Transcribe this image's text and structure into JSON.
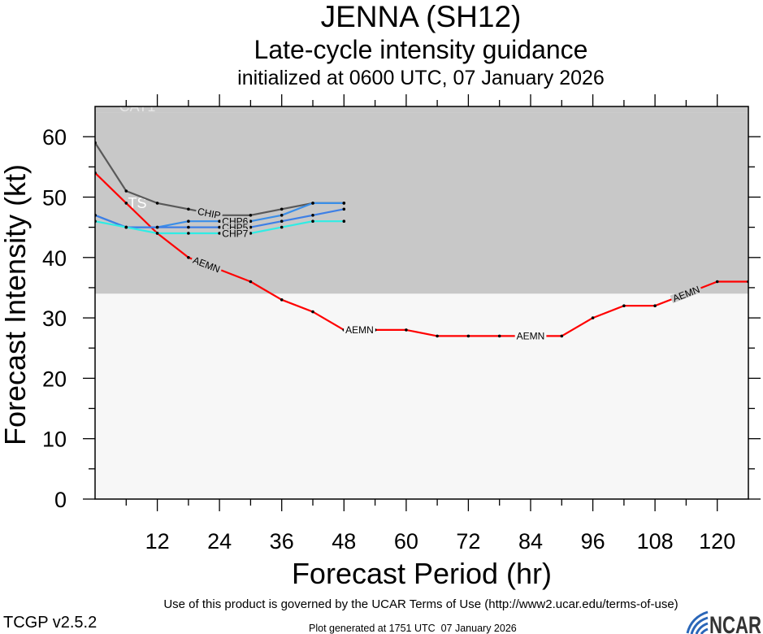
{
  "chart_data": {
    "type": "line",
    "title": "JENNA (SH12)",
    "subtitle": "Late-cycle intensity guidance",
    "initialized": "initialized at 0600 UTC, 07 January 2026",
    "xlabel": "Forecast Period (hr)",
    "ylabel": "Forecast Intensity (kt)",
    "xlim": [
      0,
      126
    ],
    "ylim": [
      0,
      65
    ],
    "xticks": [
      12,
      24,
      36,
      48,
      60,
      72,
      84,
      96,
      108,
      120
    ],
    "yticks": [
      0,
      10,
      20,
      30,
      40,
      50,
      60
    ],
    "grid": false,
    "background_color": "#f7f7f7",
    "bands": [
      {
        "label": "TS",
        "min": 34,
        "max": 64,
        "color": "#c8c8c8",
        "label_color": "#ffffff"
      },
      {
        "label": "CAT1",
        "min": 64,
        "color": "#c8c8c8",
        "label_color": "#e6e6e6"
      }
    ],
    "series": [
      {
        "name": "AEMN",
        "color": "#ff0000",
        "x": [
          0,
          6,
          12,
          18,
          24,
          30,
          36,
          42,
          48,
          54,
          60,
          66,
          72,
          78,
          84,
          90,
          96,
          102,
          108,
          114,
          120,
          126
        ],
        "values": [
          54,
          49,
          44,
          40,
          38,
          36,
          33,
          31,
          28,
          28,
          28,
          27,
          27,
          27,
          27,
          27,
          30,
          32,
          32,
          34,
          36,
          36
        ]
      },
      {
        "name": "CHIP",
        "color": "#595959",
        "x": [
          0,
          6,
          12,
          18,
          24,
          30,
          36,
          42,
          48
        ],
        "values": [
          59,
          51,
          49,
          48,
          47,
          47,
          48,
          49,
          49
        ]
      },
      {
        "name": "CHP6",
        "color": "#3a8ee8",
        "x": [
          0,
          6,
          12,
          18,
          24,
          30,
          36,
          42,
          48
        ],
        "values": [
          47,
          45,
          45,
          46,
          46,
          46,
          47,
          49,
          49
        ]
      },
      {
        "name": "CHP5",
        "color": "#3d7fe6",
        "x": [
          0,
          6,
          12,
          18,
          24,
          30,
          36,
          42,
          48
        ],
        "values": [
          47,
          45,
          45,
          45,
          45,
          45,
          46,
          47,
          48
        ]
      },
      {
        "name": "CHP7",
        "color": "#30ece4",
        "x": [
          0,
          6,
          12,
          18,
          24,
          30,
          36,
          42,
          48
        ],
        "values": [
          46,
          45,
          44,
          44,
          44,
          44,
          45,
          46,
          46
        ]
      }
    ]
  },
  "footer": {
    "terms": "Use of this product is governed by the UCAR Terms of Use (http://www2.ucar.edu/terms-of-use)",
    "version": "TCGP v2.5.2",
    "generated": "Plot generated at 1751 UTC  07 January 2026"
  },
  "logo": {
    "text": "NCAR",
    "swoosh_color": "#2a66b8"
  }
}
